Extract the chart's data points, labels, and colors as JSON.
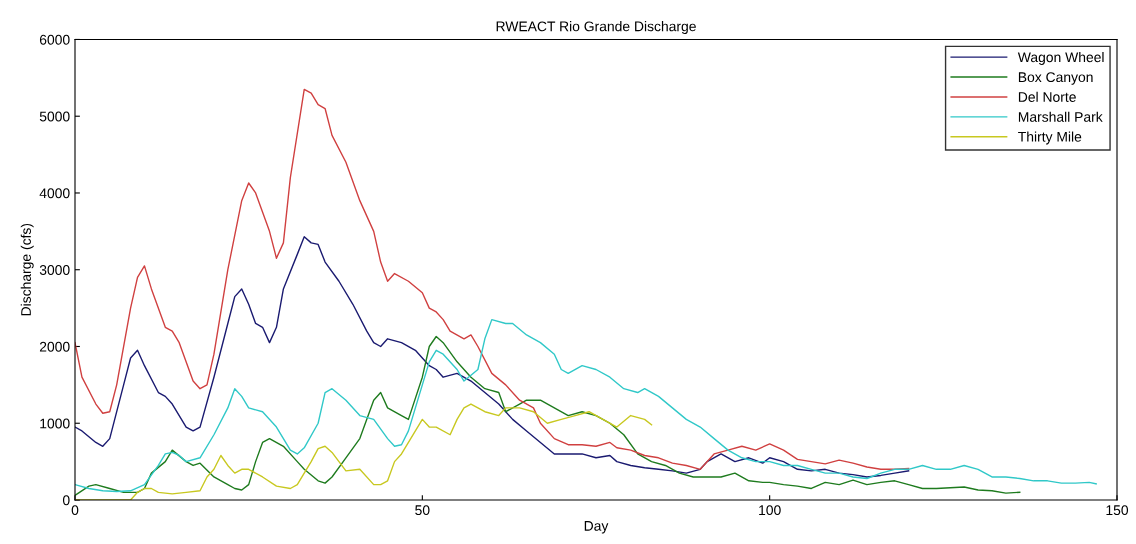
{
  "chart_data": {
    "type": "line",
    "title": "RWEACT Rio Grande Discharge",
    "xlabel": "Day",
    "ylabel": "Discharge (cfs)",
    "xlim": [
      0,
      150
    ],
    "xticks": [
      0,
      50,
      100,
      150
    ],
    "ylim": [
      0,
      6000
    ],
    "yticks": [
      0,
      1000,
      2000,
      3000,
      4000,
      5000,
      6000
    ],
    "grid": false,
    "legend": "top right",
    "marker": "none",
    "line_style": "solid",
    "series": [
      {
        "name": "Wagon Wheel",
        "color": "#1a1a70",
        "x": [
          0,
          1,
          3,
          4,
          5,
          7,
          8,
          9,
          10,
          12,
          13,
          14,
          16,
          17,
          18,
          20,
          22,
          23,
          24,
          25,
          26,
          27,
          28,
          29,
          30,
          32,
          33,
          34,
          35,
          36,
          38,
          40,
          42,
          43,
          44,
          45,
          47,
          49,
          50,
          51,
          52,
          53,
          55,
          57,
          59,
          61,
          63,
          65,
          67,
          69,
          71,
          73,
          75,
          77,
          78,
          80,
          82,
          84,
          86,
          88,
          90,
          91,
          93,
          95,
          97,
          99,
          100,
          102,
          104,
          106,
          108,
          110,
          112,
          114,
          116,
          118,
          120
        ],
        "values": [
          950,
          900,
          750,
          700,
          800,
          1500,
          1850,
          1950,
          1750,
          1400,
          1350,
          1250,
          950,
          900,
          950,
          1600,
          2300,
          2650,
          2750,
          2550,
          2300,
          2250,
          2050,
          2250,
          2750,
          3200,
          3430,
          3350,
          3330,
          3100,
          2850,
          2550,
          2200,
          2050,
          2000,
          2100,
          2050,
          1950,
          1850,
          1750,
          1700,
          1600,
          1650,
          1550,
          1400,
          1250,
          1050,
          900,
          750,
          600,
          600,
          600,
          550,
          580,
          500,
          450,
          420,
          400,
          380,
          350,
          400,
          500,
          600,
          500,
          550,
          480,
          550,
          500,
          400,
          380,
          400,
          350,
          330,
          300,
          320,
          350,
          380
        ]
      },
      {
        "name": "Box Canyon",
        "color": "#1e7b1e",
        "x": [
          0,
          2,
          3,
          5,
          7,
          9,
          10,
          11,
          13,
          14,
          16,
          17,
          18,
          20,
          22,
          23,
          24,
          25,
          26,
          27,
          28,
          30,
          32,
          33,
          35,
          36,
          37,
          39,
          41,
          43,
          44,
          45,
          47,
          48,
          50,
          51,
          52,
          53,
          55,
          57,
          59,
          61,
          62,
          64,
          65,
          67,
          69,
          71,
          73,
          75,
          77,
          79,
          81,
          83,
          85,
          87,
          89,
          91,
          93,
          95,
          97,
          99,
          100,
          102,
          104,
          106,
          108,
          110,
          112,
          114,
          116,
          118,
          120,
          122,
          124,
          126,
          128,
          130,
          132,
          134,
          136
        ],
        "values": [
          60,
          180,
          200,
          150,
          100,
          100,
          150,
          350,
          500,
          650,
          500,
          450,
          480,
          300,
          200,
          150,
          130,
          200,
          500,
          750,
          800,
          700,
          500,
          400,
          250,
          220,
          300,
          550,
          800,
          1300,
          1400,
          1200,
          1100,
          1050,
          1600,
          2000,
          2130,
          2050,
          1800,
          1600,
          1450,
          1400,
          1150,
          1250,
          1300,
          1300,
          1200,
          1100,
          1150,
          1100,
          1000,
          850,
          600,
          500,
          450,
          350,
          300,
          300,
          300,
          350,
          250,
          230,
          230,
          200,
          180,
          150,
          230,
          200,
          260,
          200,
          230,
          250,
          200,
          150,
          150,
          160,
          170,
          130,
          120,
          90,
          100
        ]
      },
      {
        "name": "Del Norte",
        "color": "#d04040",
        "x": [
          0,
          1,
          3,
          4,
          5,
          6,
          8,
          9,
          10,
          11,
          13,
          14,
          15,
          17,
          18,
          19,
          20,
          22,
          24,
          25,
          26,
          28,
          29,
          30,
          31,
          33,
          34,
          35,
          36,
          37,
          39,
          41,
          43,
          44,
          45,
          46,
          48,
          50,
          51,
          52,
          53,
          54,
          56,
          57,
          58,
          60,
          62,
          64,
          66,
          67,
          69,
          71,
          73,
          75,
          77,
          78,
          80,
          82,
          84,
          86,
          88,
          90,
          92,
          94,
          96,
          98,
          100,
          102,
          104,
          106,
          108,
          110,
          112,
          114,
          116,
          118,
          120
        ],
        "values": [
          2050,
          1600,
          1250,
          1130,
          1150,
          1500,
          2500,
          2900,
          3050,
          2750,
          2250,
          2200,
          2050,
          1550,
          1450,
          1500,
          1900,
          3000,
          3900,
          4130,
          4000,
          3500,
          3150,
          3350,
          4200,
          5350,
          5300,
          5150,
          5100,
          4750,
          4400,
          3900,
          3500,
          3100,
          2850,
          2950,
          2850,
          2700,
          2500,
          2450,
          2350,
          2200,
          2100,
          2150,
          2000,
          1650,
          1500,
          1300,
          1200,
          1000,
          800,
          720,
          720,
          700,
          750,
          680,
          650,
          580,
          550,
          480,
          450,
          400,
          600,
          650,
          700,
          650,
          730,
          650,
          530,
          500,
          470,
          520,
          480,
          430,
          400,
          400,
          410
        ]
      },
      {
        "name": "Marshall Park",
        "color": "#30c8c8",
        "x": [
          0,
          2,
          4,
          6,
          8,
          10,
          12,
          13,
          14,
          15,
          16,
          18,
          20,
          22,
          23,
          24,
          25,
          27,
          29,
          31,
          32,
          33,
          35,
          36,
          37,
          39,
          41,
          43,
          45,
          46,
          47,
          48,
          50,
          51,
          52,
          53,
          55,
          56,
          58,
          59,
          60,
          62,
          63,
          65,
          67,
          69,
          70,
          71,
          73,
          75,
          77,
          79,
          81,
          82,
          84,
          86,
          88,
          90,
          92,
          94,
          96,
          98,
          100,
          102,
          104,
          106,
          108,
          110,
          112,
          114,
          116,
          118,
          120,
          122,
          124,
          126,
          128,
          130,
          132,
          134,
          136,
          138,
          140,
          142,
          144,
          146,
          147
        ],
        "values": [
          200,
          150,
          120,
          110,
          120,
          200,
          450,
          600,
          620,
          580,
          500,
          550,
          850,
          1200,
          1450,
          1350,
          1200,
          1150,
          950,
          650,
          600,
          680,
          1000,
          1400,
          1450,
          1300,
          1100,
          1050,
          800,
          700,
          720,
          900,
          1500,
          1800,
          1950,
          1900,
          1700,
          1550,
          1700,
          2100,
          2350,
          2300,
          2300,
          2150,
          2050,
          1900,
          1700,
          1650,
          1750,
          1700,
          1600,
          1450,
          1400,
          1450,
          1350,
          1200,
          1050,
          950,
          800,
          650,
          550,
          500,
          500,
          450,
          450,
          400,
          350,
          350,
          300,
          280,
          350,
          400,
          400,
          450,
          400,
          400,
          450,
          400,
          300,
          300,
          280,
          250,
          250,
          220,
          220,
          230,
          210
        ]
      },
      {
        "name": "Thirty Mile",
        "color": "#c8c820",
        "x": [
          0,
          8,
          9,
          10,
          11,
          12,
          14,
          16,
          18,
          19,
          20,
          21,
          22,
          23,
          24,
          25,
          27,
          29,
          31,
          32,
          34,
          35,
          36,
          37,
          38,
          39,
          41,
          43,
          44,
          45,
          46,
          47,
          49,
          50,
          51,
          52,
          54,
          55,
          56,
          57,
          59,
          61,
          62,
          64,
          66,
          68,
          70,
          72,
          74,
          76,
          78,
          80,
          82,
          83
        ],
        "values": [
          0,
          0,
          100,
          150,
          150,
          100,
          80,
          100,
          120,
          300,
          400,
          580,
          450,
          350,
          400,
          400,
          300,
          180,
          150,
          200,
          500,
          670,
          700,
          620,
          500,
          380,
          400,
          200,
          200,
          250,
          500,
          600,
          900,
          1050,
          950,
          950,
          850,
          1050,
          1200,
          1250,
          1150,
          1100,
          1200,
          1200,
          1150,
          1000,
          1050,
          1100,
          1150,
          1050,
          950,
          1100,
          1050,
          980
        ]
      }
    ]
  }
}
